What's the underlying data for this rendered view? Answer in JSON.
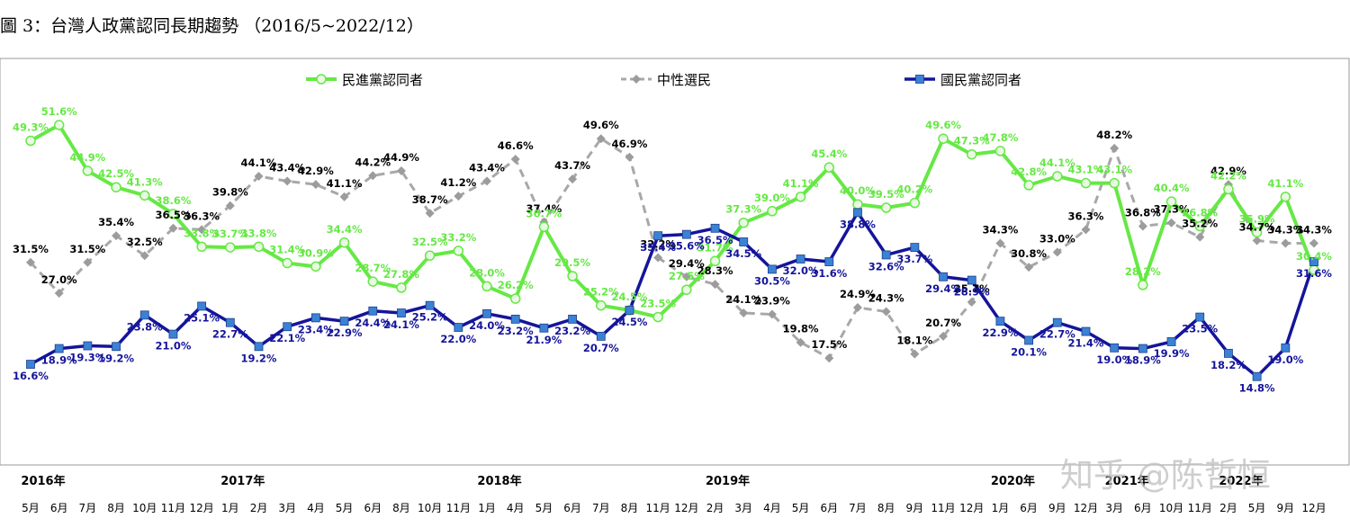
{
  "title": "圖 3：台灣人政黨認同長期趨勢 （2016/5~2022/12）",
  "watermark": "知乎 @陈哲恒",
  "colors": {
    "dpp": "#66e845",
    "neutral": "#a8a8a8",
    "kmt": "#14149b",
    "kmt_marker": "#3b82d6"
  },
  "chart_data": {
    "type": "line",
    "title": "圖 3：台灣人政黨認同長期趨勢 （2016/5~2022/12）",
    "xlabel": "",
    "ylabel": "",
    "legend_position": "top-center",
    "grid": false,
    "categories": [
      "5月",
      "6月",
      "7月",
      "8月",
      "10月",
      "11月",
      "12月",
      "1月",
      "2月",
      "3月",
      "4月",
      "5月",
      "6月",
      "8月",
      "10月",
      "11月",
      "1月",
      "4月",
      "5月",
      "6月",
      "7月",
      "8月",
      "11月",
      "12月",
      "2月",
      "3月",
      "4月",
      "5月",
      "6月",
      "7月",
      "8月",
      "9月",
      "11月",
      "12月",
      "1月",
      "6月",
      "9月",
      "12月",
      "3月",
      "6月",
      "10月",
      "11月",
      "2月",
      "5月",
      "9月",
      "12月"
    ],
    "year_labels": [
      {
        "label": "2016年",
        "index": 0
      },
      {
        "label": "2017年",
        "index": 7
      },
      {
        "label": "2018年",
        "index": 16
      },
      {
        "label": "2019年",
        "index": 24
      },
      {
        "label": "2020年",
        "index": 34
      },
      {
        "label": "2021年",
        "index": 38
      },
      {
        "label": "2022年",
        "index": 42
      }
    ],
    "series": [
      {
        "name": "民進黨認同者",
        "key": "dpp",
        "values": [
          49.3,
          51.6,
          44.9,
          42.5,
          41.3,
          38.6,
          33.8,
          33.7,
          33.8,
          31.4,
          30.9,
          34.4,
          28.7,
          27.8,
          32.5,
          33.2,
          28.0,
          26.2,
          36.7,
          29.5,
          25.2,
          24.5,
          23.5,
          27.5,
          31.7,
          37.3,
          39.0,
          41.1,
          45.4,
          40.0,
          39.5,
          40.2,
          49.6,
          47.3,
          47.8,
          42.8,
          44.1,
          43.1,
          43.1,
          28.2,
          40.4,
          36.8,
          42.2,
          35.9,
          41.1,
          30.4
        ]
      },
      {
        "name": "中性選民",
        "key": "neutral",
        "values": [
          31.5,
          27.0,
          31.5,
          35.4,
          32.5,
          36.5,
          36.3,
          39.8,
          44.1,
          43.4,
          42.9,
          41.1,
          44.2,
          44.9,
          38.7,
          41.2,
          43.4,
          46.6,
          37.4,
          43.7,
          49.6,
          46.9,
          32.2,
          29.4,
          28.3,
          24.1,
          23.9,
          19.8,
          17.5,
          24.9,
          24.3,
          18.1,
          20.7,
          25.7,
          34.3,
          30.8,
          33.0,
          36.3,
          48.2,
          36.8,
          37.3,
          35.2,
          42.9,
          34.7,
          34.3,
          34.3
        ]
      },
      {
        "name": "國民黨認同者",
        "key": "kmt",
        "values": [
          16.6,
          18.9,
          19.3,
          19.2,
          23.8,
          21.0,
          25.1,
          22.7,
          19.2,
          22.1,
          23.4,
          22.9,
          24.4,
          24.1,
          25.2,
          22.0,
          24.0,
          23.2,
          21.9,
          23.2,
          20.7,
          24.5,
          35.4,
          35.6,
          36.5,
          34.5,
          30.5,
          32.0,
          31.6,
          38.8,
          32.6,
          33.7,
          29.4,
          28.9,
          22.9,
          20.1,
          22.7,
          21.4,
          19.0,
          18.9,
          19.9,
          23.5,
          18.2,
          14.8,
          19.0,
          31.6
        ]
      }
    ]
  }
}
